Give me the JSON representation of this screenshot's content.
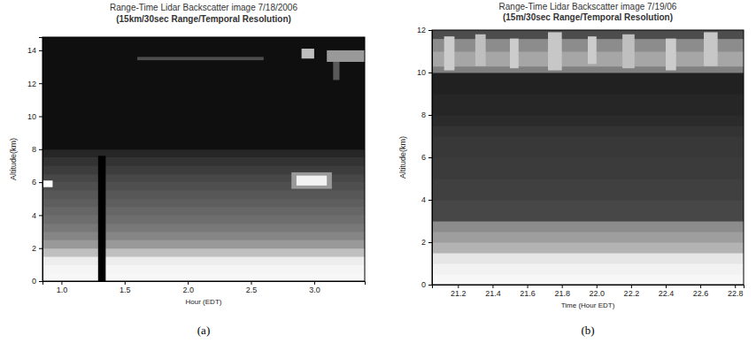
{
  "chart_data": [
    {
      "type": "heatmap",
      "title": "Range-Time Lidar Backscatter image 7/18/2006",
      "subtitle": "(15km/30sec Range/Temporal Resolution)",
      "x_label": "Hour (EDT)",
      "y_label": "Altitude(km)",
      "annotation": "(a)",
      "xlim": [
        0.85,
        3.4
      ],
      "ylim": [
        0,
        14.8
      ],
      "xticks": [
        {
          "value": 1,
          "label": "1.0"
        },
        {
          "value": 1.5,
          "label": "1.5"
        },
        {
          "value": 2,
          "label": "2.0"
        },
        {
          "value": 2.5,
          "label": "2.5"
        },
        {
          "value": 3,
          "label": "3.0"
        }
      ],
      "yticks": [
        0,
        2,
        4,
        6,
        8,
        10,
        12,
        14
      ],
      "profile": {
        "altitude": [
          0,
          0.5,
          1,
          1.5,
          2,
          2.5,
          3,
          3.5,
          4,
          4.5,
          5,
          5.5,
          6,
          6.5,
          7,
          7.5,
          8,
          14.8
        ],
        "values": [
          0.97,
          0.96,
          0.93,
          0.75,
          0.6,
          0.52,
          0.47,
          0.43,
          0.4,
          0.37,
          0.34,
          0.31,
          0.28,
          0.24,
          0.2,
          0.15,
          0.06
        ]
      },
      "features": [
        {
          "x": [
            0.85,
            0.93
          ],
          "y": [
            5.7,
            6.1
          ],
          "value": 1.0
        },
        {
          "x": [
            2.82,
            3.14
          ],
          "y": [
            5.6,
            6.6
          ],
          "value": 0.6
        },
        {
          "x": [
            2.86,
            3.1
          ],
          "y": [
            5.8,
            6.4
          ],
          "value": 0.95
        },
        {
          "x": [
            1.29,
            1.35
          ],
          "y": [
            0,
            7.6
          ],
          "value": 0.0
        },
        {
          "x": [
            1.6,
            2.6
          ],
          "y": [
            13.4,
            13.6
          ],
          "value": 0.3
        },
        {
          "x": [
            2.9,
            3.0
          ],
          "y": [
            13.5,
            14.1
          ],
          "value": 0.75
        },
        {
          "x": [
            3.1,
            3.4
          ],
          "y": [
            13.3,
            14.0
          ],
          "value": 0.6
        },
        {
          "x": [
            3.15,
            3.2
          ],
          "y": [
            12.2,
            13.3
          ],
          "value": 0.35
        }
      ]
    },
    {
      "type": "heatmap",
      "title": "Range-Time Lidar Backscatter image 7/19/06",
      "subtitle": "(15m/30sec Range/Temporal Resolution)",
      "x_label": "Time (Hour EDT)",
      "y_label": "Altitude(km)",
      "annotation": "(b)",
      "xlim": [
        21.05,
        22.85
      ],
      "ylim": [
        0,
        12
      ],
      "xticks": [
        21.2,
        21.4,
        21.6,
        21.8,
        {
          "value": 22,
          "label": "22.0"
        },
        22.2,
        22.4,
        22.6,
        22.8
      ],
      "yticks": [
        0,
        2,
        4,
        6,
        8,
        10,
        12
      ],
      "profile": {
        "altitude": [
          0,
          0.5,
          1,
          1.5,
          2,
          2.5,
          3,
          4,
          5,
          6,
          7,
          7.5,
          8,
          9,
          10,
          10.3,
          11,
          11.6,
          12
        ],
        "values": [
          0.97,
          0.95,
          0.9,
          0.7,
          0.62,
          0.55,
          0.28,
          0.25,
          0.23,
          0.22,
          0.2,
          0.17,
          0.15,
          0.13,
          0.5,
          0.65,
          0.55,
          0.3
        ]
      },
      "features": [
        {
          "x": [
            21.12,
            21.18
          ],
          "y": [
            10.1,
            11.7
          ],
          "value": 0.8
        },
        {
          "x": [
            21.3,
            21.36
          ],
          "y": [
            10.3,
            11.8
          ],
          "value": 0.75
        },
        {
          "x": [
            21.5,
            21.55
          ],
          "y": [
            10.2,
            11.6
          ],
          "value": 0.8
        },
        {
          "x": [
            21.72,
            21.8
          ],
          "y": [
            10.1,
            11.9
          ],
          "value": 0.78
        },
        {
          "x": [
            21.95,
            22.0
          ],
          "y": [
            10.4,
            11.7
          ],
          "value": 0.8
        },
        {
          "x": [
            22.15,
            22.22
          ],
          "y": [
            10.2,
            11.8
          ],
          "value": 0.75
        },
        {
          "x": [
            22.4,
            22.46
          ],
          "y": [
            10.1,
            11.6
          ],
          "value": 0.8
        },
        {
          "x": [
            22.62,
            22.7
          ],
          "y": [
            10.3,
            11.9
          ],
          "value": 0.78
        }
      ]
    }
  ]
}
